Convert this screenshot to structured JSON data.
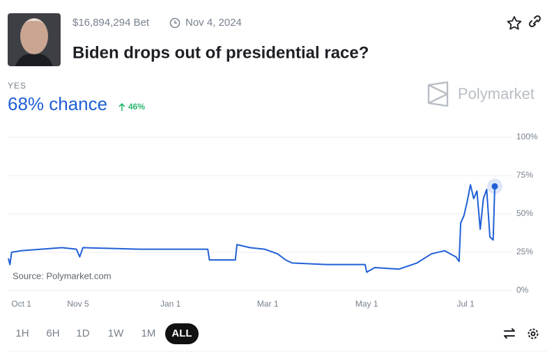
{
  "header": {
    "volume": "$16,894,294 Bet",
    "end_date": "Nov 4, 2024",
    "title": "Biden drops out of presidential race?",
    "outcome": "YES",
    "chance": "68% chance",
    "change": "46%",
    "brand": "Polymarket"
  },
  "chart_data": {
    "type": "line",
    "color": "#1f5fd6",
    "source": "Source: Polymarket.com",
    "x": [
      -8,
      -7,
      -6,
      0,
      25,
      34,
      36,
      38,
      73,
      115,
      116,
      132,
      133,
      141,
      150,
      158,
      163,
      167,
      188,
      212,
      213,
      218,
      233,
      244,
      253,
      261,
      268,
      270,
      271,
      273,
      275,
      277,
      279,
      281,
      283,
      285,
      287,
      289,
      291,
      292
    ],
    "values": [
      21,
      17,
      25,
      26,
      28,
      27,
      22,
      28,
      27,
      27,
      20,
      20,
      30,
      28,
      27,
      24,
      20,
      18,
      17,
      17,
      12,
      15,
      14,
      18,
      24,
      26,
      22,
      19,
      44,
      49,
      58,
      69,
      60,
      65,
      40,
      60,
      66,
      35,
      33,
      68
    ],
    "xlim": [
      -8,
      292
    ],
    "xticks": [
      {
        "value": 0,
        "label": "Oct 1"
      },
      {
        "value": 35,
        "label": "Nov 5"
      },
      {
        "value": 92,
        "label": "Jan 1"
      },
      {
        "value": 152,
        "label": "Mar 1"
      },
      {
        "value": 213,
        "label": "May 1"
      },
      {
        "value": 274,
        "label": "Jul 1"
      }
    ],
    "ylim": [
      0,
      100
    ],
    "yticks": [
      {
        "value": 0,
        "label": "0%"
      },
      {
        "value": 25,
        "label": "25%"
      },
      {
        "value": 50,
        "label": "50%"
      },
      {
        "value": 75,
        "label": "75%"
      },
      {
        "value": 100,
        "label": "100%"
      }
    ],
    "grid": true
  },
  "controls": {
    "ranges": [
      "1H",
      "6H",
      "1D",
      "1W",
      "1M",
      "ALL"
    ]
  }
}
